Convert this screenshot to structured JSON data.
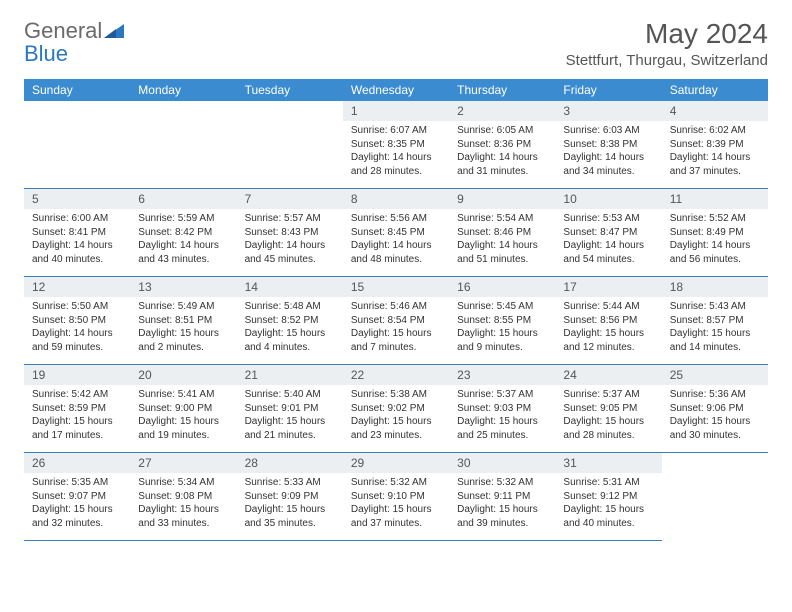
{
  "logo": {
    "text1": "General",
    "text2": "Blue"
  },
  "title": "May 2024",
  "location": "Stettfurt, Thurgau, Switzerland",
  "colors": {
    "header_bg": "#3b8bd0",
    "header_text": "#ffffff",
    "daynum_bg": "#eceff1",
    "cell_border": "#3b7fb5",
    "body_text": "#333333",
    "title_text": "#555555",
    "logo_gray": "#6a6a6a",
    "logo_blue": "#2b77c0"
  },
  "weekdays": [
    "Sunday",
    "Monday",
    "Tuesday",
    "Wednesday",
    "Thursday",
    "Friday",
    "Saturday"
  ],
  "leading_blanks": 3,
  "days": [
    {
      "n": "1",
      "sunrise": "6:07 AM",
      "sunset": "8:35 PM",
      "daylight": "14 hours and 28 minutes."
    },
    {
      "n": "2",
      "sunrise": "6:05 AM",
      "sunset": "8:36 PM",
      "daylight": "14 hours and 31 minutes."
    },
    {
      "n": "3",
      "sunrise": "6:03 AM",
      "sunset": "8:38 PM",
      "daylight": "14 hours and 34 minutes."
    },
    {
      "n": "4",
      "sunrise": "6:02 AM",
      "sunset": "8:39 PM",
      "daylight": "14 hours and 37 minutes."
    },
    {
      "n": "5",
      "sunrise": "6:00 AM",
      "sunset": "8:41 PM",
      "daylight": "14 hours and 40 minutes."
    },
    {
      "n": "6",
      "sunrise": "5:59 AM",
      "sunset": "8:42 PM",
      "daylight": "14 hours and 43 minutes."
    },
    {
      "n": "7",
      "sunrise": "5:57 AM",
      "sunset": "8:43 PM",
      "daylight": "14 hours and 45 minutes."
    },
    {
      "n": "8",
      "sunrise": "5:56 AM",
      "sunset": "8:45 PM",
      "daylight": "14 hours and 48 minutes."
    },
    {
      "n": "9",
      "sunrise": "5:54 AM",
      "sunset": "8:46 PM",
      "daylight": "14 hours and 51 minutes."
    },
    {
      "n": "10",
      "sunrise": "5:53 AM",
      "sunset": "8:47 PM",
      "daylight": "14 hours and 54 minutes."
    },
    {
      "n": "11",
      "sunrise": "5:52 AM",
      "sunset": "8:49 PM",
      "daylight": "14 hours and 56 minutes."
    },
    {
      "n": "12",
      "sunrise": "5:50 AM",
      "sunset": "8:50 PM",
      "daylight": "14 hours and 59 minutes."
    },
    {
      "n": "13",
      "sunrise": "5:49 AM",
      "sunset": "8:51 PM",
      "daylight": "15 hours and 2 minutes."
    },
    {
      "n": "14",
      "sunrise": "5:48 AM",
      "sunset": "8:52 PM",
      "daylight": "15 hours and 4 minutes."
    },
    {
      "n": "15",
      "sunrise": "5:46 AM",
      "sunset": "8:54 PM",
      "daylight": "15 hours and 7 minutes."
    },
    {
      "n": "16",
      "sunrise": "5:45 AM",
      "sunset": "8:55 PM",
      "daylight": "15 hours and 9 minutes."
    },
    {
      "n": "17",
      "sunrise": "5:44 AM",
      "sunset": "8:56 PM",
      "daylight": "15 hours and 12 minutes."
    },
    {
      "n": "18",
      "sunrise": "5:43 AM",
      "sunset": "8:57 PM",
      "daylight": "15 hours and 14 minutes."
    },
    {
      "n": "19",
      "sunrise": "5:42 AM",
      "sunset": "8:59 PM",
      "daylight": "15 hours and 17 minutes."
    },
    {
      "n": "20",
      "sunrise": "5:41 AM",
      "sunset": "9:00 PM",
      "daylight": "15 hours and 19 minutes."
    },
    {
      "n": "21",
      "sunrise": "5:40 AM",
      "sunset": "9:01 PM",
      "daylight": "15 hours and 21 minutes."
    },
    {
      "n": "22",
      "sunrise": "5:38 AM",
      "sunset": "9:02 PM",
      "daylight": "15 hours and 23 minutes."
    },
    {
      "n": "23",
      "sunrise": "5:37 AM",
      "sunset": "9:03 PM",
      "daylight": "15 hours and 25 minutes."
    },
    {
      "n": "24",
      "sunrise": "5:37 AM",
      "sunset": "9:05 PM",
      "daylight": "15 hours and 28 minutes."
    },
    {
      "n": "25",
      "sunrise": "5:36 AM",
      "sunset": "9:06 PM",
      "daylight": "15 hours and 30 minutes."
    },
    {
      "n": "26",
      "sunrise": "5:35 AM",
      "sunset": "9:07 PM",
      "daylight": "15 hours and 32 minutes."
    },
    {
      "n": "27",
      "sunrise": "5:34 AM",
      "sunset": "9:08 PM",
      "daylight": "15 hours and 33 minutes."
    },
    {
      "n": "28",
      "sunrise": "5:33 AM",
      "sunset": "9:09 PM",
      "daylight": "15 hours and 35 minutes."
    },
    {
      "n": "29",
      "sunrise": "5:32 AM",
      "sunset": "9:10 PM",
      "daylight": "15 hours and 37 minutes."
    },
    {
      "n": "30",
      "sunrise": "5:32 AM",
      "sunset": "9:11 PM",
      "daylight": "15 hours and 39 minutes."
    },
    {
      "n": "31",
      "sunrise": "5:31 AM",
      "sunset": "9:12 PM",
      "daylight": "15 hours and 40 minutes."
    }
  ],
  "labels": {
    "sunrise_prefix": "Sunrise: ",
    "sunset_prefix": "Sunset: ",
    "daylight_prefix": "Daylight: "
  }
}
